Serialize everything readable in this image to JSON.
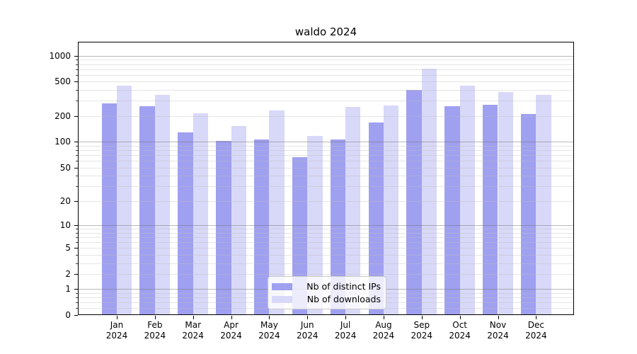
{
  "chart_data": {
    "type": "bar",
    "title": "waldo 2024",
    "categories": [
      "Jan",
      "Feb",
      "Mar",
      "Apr",
      "May",
      "Jun",
      "Jul",
      "Aug",
      "Sep",
      "Oct",
      "Nov",
      "Dec"
    ],
    "year_label": "2024",
    "series": [
      {
        "name": "Nb of distinct IPs",
        "color": "#a0a0f0",
        "values": [
          283,
          258,
          128,
          102,
          107,
          66,
          106,
          167,
          403,
          260,
          269,
          210
        ]
      },
      {
        "name": "Nb of downloads",
        "color": "#d8d8f8",
        "values": [
          448,
          350,
          217,
          152,
          231,
          118,
          254,
          267,
          705,
          450,
          382,
          349
        ]
      }
    ],
    "y_scale": "log10(1+x)",
    "y_tick_labels": [
      "0",
      "1",
      "2",
      "5",
      "10",
      "20",
      "50",
      "100",
      "200",
      "500",
      "1000"
    ],
    "y_tick_values": [
      0,
      1,
      2,
      5,
      10,
      20,
      50,
      100,
      200,
      500,
      1000
    ],
    "y_major_gridlines": [
      1,
      10,
      100,
      1000
    ],
    "y_minor_gridlines": [
      0.2,
      0.4,
      0.6,
      0.8,
      2,
      3,
      4,
      5,
      6,
      7,
      8,
      9,
      20,
      30,
      40,
      50,
      60,
      70,
      80,
      90,
      200,
      300,
      400,
      500,
      600,
      700,
      800,
      900
    ],
    "ylim": [
      0,
      1380
    ],
    "xlabel": "",
    "ylabel": "",
    "grid": true,
    "legend_position": "lower center",
    "axis_color": "#000000",
    "background_color": "#ffffff"
  }
}
